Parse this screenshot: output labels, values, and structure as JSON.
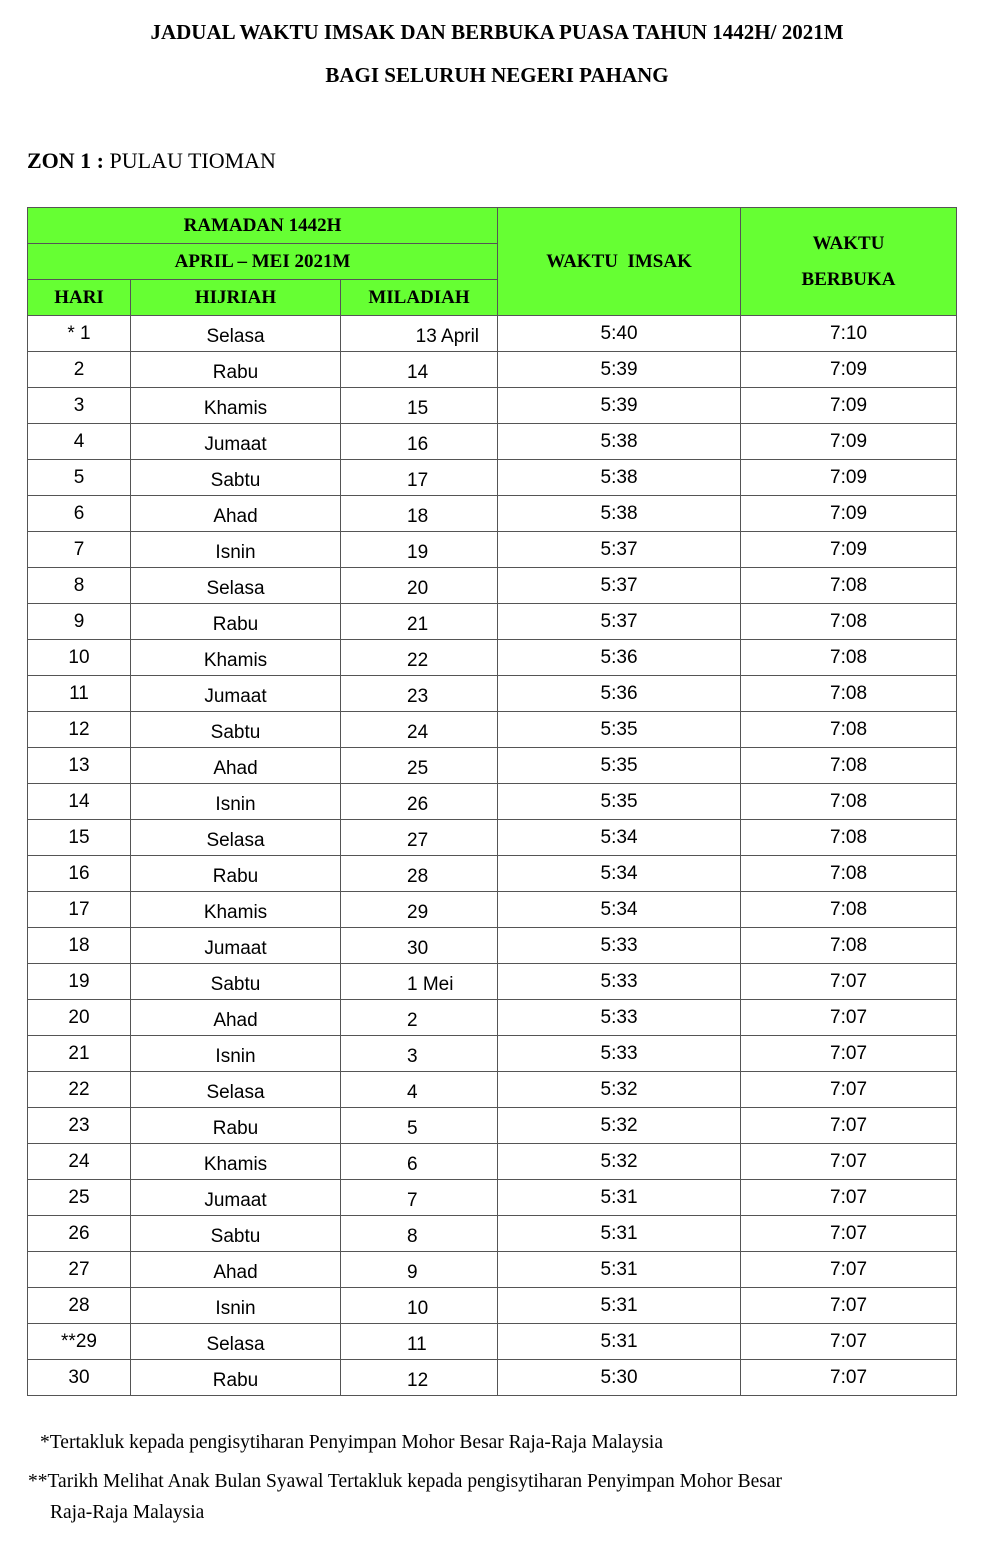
{
  "title_line1": "JADUAL WAKTU IMSAK DAN BERBUKA PUASA TAHUN 1442H/ 2021M",
  "title_line2": "BAGI SELURUH NEGERI PAHANG",
  "zone_label": "ZON 1 :",
  "zone_name": " PULAU TIOMAN",
  "header": {
    "ramadan": "RAMADAN 1442H",
    "months": "APRIL – MEI 2021M",
    "hari": "HARI",
    "hijriah": "HIJRIAH",
    "miladiah": "MILADIAH",
    "imsak": "WAKTU  IMSAK",
    "berbuka": "WAKTU BERBUKA",
    "green": "#66ff33"
  },
  "rows": [
    [
      "* 1",
      "Selasa",
      "13 April",
      "5:40",
      "7:10"
    ],
    [
      "2",
      "Rabu",
      "14",
      "5:39",
      "7:09"
    ],
    [
      "3",
      "Khamis",
      "15",
      "5:39",
      "7:09"
    ],
    [
      "4",
      "Jumaat",
      "16",
      "5:38",
      "7:09"
    ],
    [
      "5",
      "Sabtu",
      "17",
      "5:38",
      "7:09"
    ],
    [
      "6",
      "Ahad",
      "18",
      "5:38",
      "7:09"
    ],
    [
      "7",
      "Isnin",
      "19",
      "5:37",
      "7:09"
    ],
    [
      "8",
      "Selasa",
      "20",
      "5:37",
      "7:08"
    ],
    [
      "9",
      "Rabu",
      "21",
      "5:37",
      "7:08"
    ],
    [
      "10",
      "Khamis",
      "22",
      "5:36",
      "7:08"
    ],
    [
      "11",
      "Jumaat",
      "23",
      "5:36",
      "7:08"
    ],
    [
      "12",
      "Sabtu",
      "24",
      "5:35",
      "7:08"
    ],
    [
      "13",
      "Ahad",
      "25",
      "5:35",
      "7:08"
    ],
    [
      "14",
      "Isnin",
      "26",
      "5:35",
      "7:08"
    ],
    [
      "15",
      "Selasa",
      "27",
      "5:34",
      "7:08"
    ],
    [
      "16",
      "Rabu",
      "28",
      "5:34",
      "7:08"
    ],
    [
      "17",
      "Khamis",
      "29",
      "5:34",
      "7:08"
    ],
    [
      "18",
      "Jumaat",
      "30",
      "5:33",
      "7:08"
    ],
    [
      "19",
      "Sabtu",
      "1 Mei",
      "5:33",
      "7:07"
    ],
    [
      "20",
      "Ahad",
      "2",
      "5:33",
      "7:07"
    ],
    [
      "21",
      "Isnin",
      "3",
      "5:33",
      "7:07"
    ],
    [
      "22",
      "Selasa",
      "4",
      "5:32",
      "7:07"
    ],
    [
      "23",
      "Rabu",
      "5",
      "5:32",
      "7:07"
    ],
    [
      "24",
      "Khamis",
      "6",
      "5:32",
      "7:07"
    ],
    [
      "25",
      "Jumaat",
      "7",
      "5:31",
      "7:07"
    ],
    [
      "26",
      "Sabtu",
      "8",
      "5:31",
      "7:07"
    ],
    [
      "27",
      "Ahad",
      "9",
      "5:31",
      "7:07"
    ],
    [
      "28",
      "Isnin",
      "10",
      "5:31",
      "7:07"
    ],
    [
      "**29",
      "Selasa",
      "11",
      "5:31",
      "7:07"
    ],
    [
      "30",
      "Rabu",
      "12",
      "5:30",
      "7:07"
    ]
  ],
  "note1": "*Tertakluk kepada pengisytiharan Penyimpan Mohor Besar Raja-Raja Malaysia",
  "note2a": "**Tarikh Melihat Anak Bulan Syawal Tertakluk kepada pengisytiharan Penyimpan Mohor Besar",
  "note2b": "Raja-Raja Malaysia"
}
